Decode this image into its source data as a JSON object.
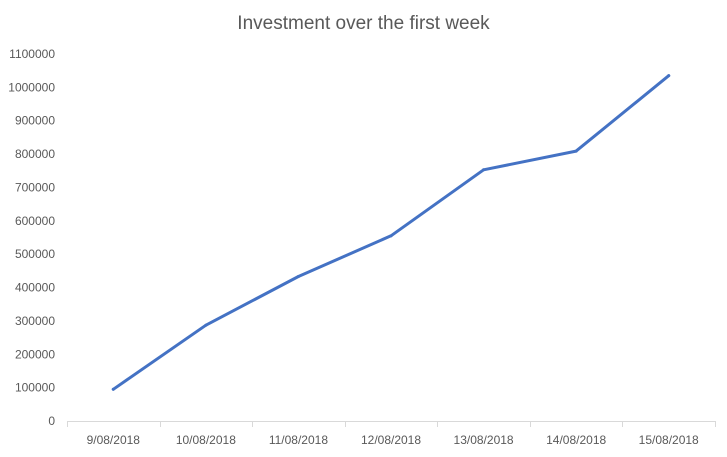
{
  "chart_data": {
    "type": "line",
    "title": "Investment over the first week",
    "xlabel": "",
    "ylabel": "",
    "categories": [
      "9/08/2018",
      "10/08/2018",
      "11/08/2018",
      "12/08/2018",
      "13/08/2018",
      "14/08/2018",
      "15/08/2018"
    ],
    "series": [
      {
        "values": [
          95000,
          287000,
          433000,
          555000,
          753000,
          809000,
          1035000
        ]
      }
    ],
    "ylim": [
      0,
      1100000
    ],
    "yticks": [
      0,
      100000,
      200000,
      300000,
      400000,
      500000,
      600000,
      700000,
      800000,
      900000,
      1000000,
      1100000
    ],
    "grid": false,
    "legend": "none",
    "colors": {
      "line": "#4472C4",
      "axis": "#D9D9D9",
      "text": "#595959"
    }
  }
}
